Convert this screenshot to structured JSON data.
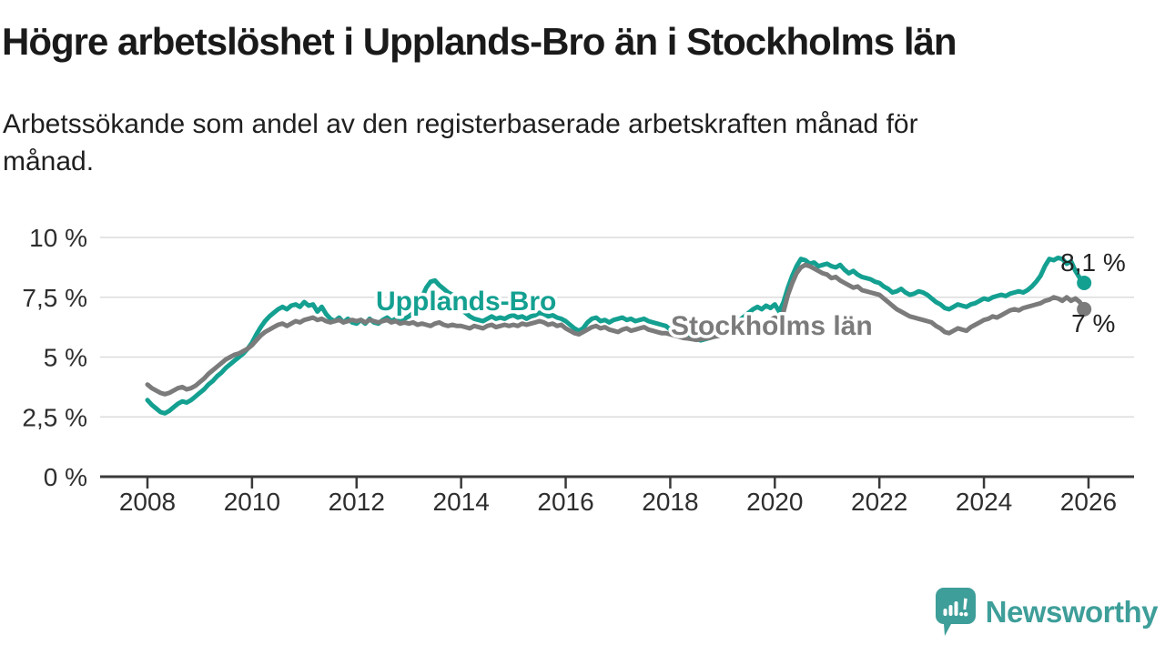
{
  "chart_data": {
    "type": "line",
    "title": "Högre arbetslöshet i Upplands-Bro än i Stockholms län",
    "subtitle": "Arbetssökande som andel av den registerbaserade arbetskraften månad för\nmånad.",
    "grid": "horizontal",
    "x_start_year": 2008,
    "points_per_year": 12,
    "x_axis": {
      "ticks": [
        2008,
        2010,
        2012,
        2014,
        2016,
        2018,
        2020,
        2022,
        2024,
        2026
      ],
      "tick_labels": [
        "2008",
        "2010",
        "2012",
        "2014",
        "2016",
        "2018",
        "2020",
        "2022",
        "2024",
        "2026"
      ],
      "range": [
        2007.1,
        2026.9
      ]
    },
    "y_axis": {
      "ticks": [
        0,
        2.5,
        5,
        7.5,
        10
      ],
      "tick_labels": [
        "0 %",
        "2,5 %",
        "5 %",
        "7,5 %",
        "10 %"
      ],
      "range": [
        0,
        10
      ],
      "unit": "%"
    },
    "series": [
      {
        "name": "Upplands-Bro",
        "color": "#14A091",
        "end_label": "8,1 %",
        "last_value": 8.1,
        "values": [
          3.2,
          3.0,
          2.85,
          2.7,
          2.65,
          2.75,
          2.9,
          3.05,
          3.15,
          3.1,
          3.2,
          3.35,
          3.5,
          3.65,
          3.85,
          4.0,
          4.2,
          4.35,
          4.55,
          4.7,
          4.85,
          5.0,
          5.15,
          5.35,
          5.6,
          5.95,
          6.25,
          6.5,
          6.7,
          6.85,
          7.0,
          7.1,
          7.0,
          7.15,
          7.2,
          7.1,
          7.3,
          7.15,
          7.2,
          6.9,
          7.1,
          6.8,
          6.6,
          6.5,
          6.65,
          6.45,
          6.6,
          6.45,
          6.4,
          6.55,
          6.4,
          6.6,
          6.45,
          6.4,
          6.55,
          6.65,
          6.5,
          6.6,
          6.45,
          6.6,
          6.7,
          6.85,
          7.1,
          7.5,
          7.9,
          8.15,
          8.2,
          8.0,
          7.85,
          7.7,
          7.6,
          7.35,
          7.0,
          6.85,
          6.7,
          6.6,
          6.55,
          6.5,
          6.6,
          6.7,
          6.6,
          6.65,
          6.6,
          6.7,
          6.75,
          6.65,
          6.7,
          6.6,
          6.7,
          6.75,
          6.85,
          6.8,
          6.7,
          6.75,
          6.65,
          6.6,
          6.5,
          6.35,
          6.2,
          6.1,
          6.2,
          6.45,
          6.6,
          6.65,
          6.5,
          6.55,
          6.45,
          6.55,
          6.6,
          6.65,
          6.55,
          6.6,
          6.5,
          6.55,
          6.6,
          6.5,
          6.45,
          6.4,
          6.35,
          6.3,
          6.15,
          6.05,
          5.95,
          5.9,
          5.85,
          5.8,
          5.75,
          5.7,
          5.75,
          5.8,
          5.85,
          5.9,
          6.0,
          6.1,
          6.25,
          6.4,
          6.55,
          6.7,
          6.85,
          7.0,
          7.1,
          7.0,
          7.15,
          7.05,
          7.2,
          6.9,
          7.3,
          7.9,
          8.4,
          8.8,
          9.1,
          9.05,
          8.9,
          8.95,
          8.8,
          8.85,
          8.9,
          8.8,
          8.75,
          8.85,
          8.65,
          8.5,
          8.6,
          8.45,
          8.35,
          8.3,
          8.25,
          8.15,
          8.1,
          7.95,
          7.85,
          7.7,
          7.75,
          7.85,
          7.7,
          7.6,
          7.65,
          7.75,
          7.7,
          7.6,
          7.45,
          7.3,
          7.2,
          7.05,
          7.0,
          7.1,
          7.2,
          7.15,
          7.1,
          7.2,
          7.25,
          7.35,
          7.45,
          7.4,
          7.5,
          7.55,
          7.6,
          7.55,
          7.65,
          7.7,
          7.75,
          7.7,
          7.8,
          7.95,
          8.15,
          8.4,
          8.8,
          9.1,
          9.05,
          9.15,
          9.1,
          8.9,
          9.0,
          8.6,
          8.3,
          8.1
        ]
      },
      {
        "name": "Stockholms län",
        "color": "#7B7B7B",
        "end_label": "7 %",
        "last_value": 7.0,
        "values": [
          3.85,
          3.7,
          3.6,
          3.5,
          3.45,
          3.5,
          3.6,
          3.7,
          3.75,
          3.65,
          3.7,
          3.8,
          3.95,
          4.1,
          4.3,
          4.45,
          4.6,
          4.75,
          4.9,
          5.0,
          5.1,
          5.15,
          5.25,
          5.35,
          5.5,
          5.7,
          5.9,
          6.05,
          6.15,
          6.25,
          6.35,
          6.4,
          6.3,
          6.4,
          6.5,
          6.45,
          6.55,
          6.6,
          6.65,
          6.55,
          6.6,
          6.5,
          6.45,
          6.5,
          6.55,
          6.45,
          6.5,
          6.55,
          6.5,
          6.55,
          6.45,
          6.55,
          6.5,
          6.45,
          6.5,
          6.55,
          6.45,
          6.5,
          6.4,
          6.45,
          6.4,
          6.45,
          6.35,
          6.4,
          6.35,
          6.3,
          6.4,
          6.45,
          6.35,
          6.3,
          6.35,
          6.3,
          6.3,
          6.25,
          6.2,
          6.3,
          6.25,
          6.2,
          6.3,
          6.35,
          6.25,
          6.3,
          6.35,
          6.3,
          6.35,
          6.3,
          6.4,
          6.35,
          6.4,
          6.45,
          6.5,
          6.45,
          6.35,
          6.4,
          6.3,
          6.35,
          6.2,
          6.1,
          6.0,
          5.95,
          6.05,
          6.15,
          6.25,
          6.3,
          6.2,
          6.25,
          6.15,
          6.1,
          6.05,
          6.15,
          6.2,
          6.1,
          6.15,
          6.2,
          6.25,
          6.15,
          6.1,
          6.05,
          6.0,
          6.0,
          5.95,
          5.9,
          5.85,
          5.8,
          5.78,
          5.75,
          5.72,
          5.75,
          5.78,
          5.8,
          5.85,
          5.88,
          5.9,
          5.95,
          6.0,
          6.05,
          6.1,
          6.15,
          6.2,
          6.25,
          6.3,
          6.35,
          6.45,
          6.55,
          6.65,
          6.55,
          6.9,
          7.6,
          8.1,
          8.5,
          8.75,
          8.85,
          8.8,
          8.7,
          8.6,
          8.5,
          8.45,
          8.3,
          8.35,
          8.2,
          8.1,
          8.0,
          7.9,
          7.95,
          7.8,
          7.75,
          7.7,
          7.65,
          7.6,
          7.45,
          7.3,
          7.15,
          7.0,
          6.9,
          6.8,
          6.7,
          6.65,
          6.6,
          6.55,
          6.5,
          6.45,
          6.3,
          6.2,
          6.05,
          6.0,
          6.1,
          6.2,
          6.15,
          6.1,
          6.25,
          6.35,
          6.45,
          6.55,
          6.6,
          6.7,
          6.65,
          6.75,
          6.85,
          6.95,
          7.0,
          6.95,
          7.05,
          7.1,
          7.15,
          7.2,
          7.25,
          7.35,
          7.4,
          7.5,
          7.45,
          7.35,
          7.5,
          7.35,
          7.45,
          7.3,
          7.0
        ]
      }
    ]
  },
  "branding": {
    "brand": "Newsworthy",
    "brand_color": "#3E9E99",
    "logo_icon": "newsworthy-bubble-chart-icon"
  }
}
